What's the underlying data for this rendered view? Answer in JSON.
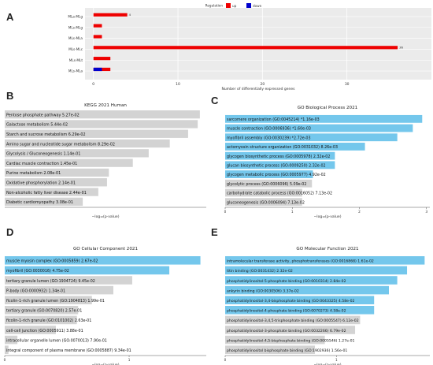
{
  "panels": {
    "A": {
      "letter": "A",
      "chart_data": {
        "type": "bar",
        "orientation": "horizontal",
        "legend_title": "Regulation",
        "legend_placement": "top-center",
        "categories": [
          "MLa-MLg",
          "MLs-MLg",
          "MLs-MLa",
          "MLs-MLc",
          "MLs-MLt",
          "MLs-MLa"
        ],
        "series": [
          {
            "name": "up",
            "color": "#ee0000",
            "values": [
              4,
              1,
              1,
              36,
              2,
              2
            ]
          },
          {
            "name": "down",
            "color": "#0000cc",
            "values": [
              0,
              0,
              0,
              0,
              0,
              1
            ]
          }
        ],
        "bar_labels": [
          "4",
          "",
          "",
          "36",
          "",
          ""
        ],
        "xlabel": "Number of differentially expressed genes",
        "xticks": [
          0,
          10,
          20,
          30
        ],
        "xlim": [
          -1,
          40
        ],
        "grid": true
      }
    },
    "B": {
      "letter": "B",
      "chart_data": {
        "type": "bar",
        "orientation": "horizontal",
        "title": "KEGG 2021 Human",
        "bar_color": "#d3d3d3",
        "xlabel": "−log₁₀(p-value)",
        "xlim": [
          0,
          1.32
        ],
        "categories": [
          "Pentose phosphate pathway  5.27e-02",
          "Galactose metabolism  5.44e-02",
          "Starch and sucrose metabolism  6.29e-02",
          "Amino sugar and nucleotide sugar metabolism  8.29e-02",
          "Glycolysis / Gluconeogenesis  1.14e-01",
          "Cardiac muscle contraction  1.45e-01",
          "Purine metabolism  2.08e-01",
          "Oxidative phosphorylation  2.14e-01",
          "Non-alcoholic fatty liver disease  2.44e-01",
          "Diabetic cardiomyopathy  3.08e-01"
        ],
        "values": [
          1.278,
          1.264,
          1.201,
          1.081,
          0.943,
          0.839,
          0.682,
          0.67,
          0.613,
          0.511
        ]
      }
    },
    "C": {
      "letter": "C",
      "chart_data": {
        "type": "bar",
        "orientation": "horizontal",
        "title": "GO Biological Process 2021",
        "xlabel": "−log₁₀(p-value)",
        "xticks": [
          0,
          1,
          2,
          3
        ],
        "xlim": [
          0,
          3.05
        ],
        "categories": [
          "sarcomere organization (GO:0045214)  *1.16e-03",
          "muscle contraction (GO:0006936)  *1.60e-03",
          "myofibril assembly (GO:0030239)  *2.72e-03",
          "actomyosin structure organization (GO:0031032)  8.26e-03",
          "glycogen biosynthetic process (GO:0005978)  2.32e-02",
          "glucan biosynthetic process (GO:0009250)  2.32e-02",
          "glycogen metabolic process (GO:0005977)  4.92e-02",
          "glycolytic process (GO:0006096)  5.09e-02",
          "carbohydrate catabolic process (GO:0016052)  7.13e-02",
          "gluconeogenesis (GO:0006094)  7.13e-02"
        ],
        "values": [
          2.936,
          2.796,
          2.565,
          2.083,
          1.635,
          1.635,
          1.308,
          1.293,
          1.147,
          1.147
        ],
        "significant": [
          true,
          true,
          true,
          true,
          true,
          true,
          true,
          false,
          false,
          false
        ]
      }
    },
    "D": {
      "letter": "D",
      "chart_data": {
        "type": "bar",
        "orientation": "horizontal",
        "title": "GO Cellular Component 2021",
        "xlabel": "−log₁₀(p-value)",
        "xticks": [
          0,
          1
        ],
        "xlim": [
          0,
          1.62
        ],
        "categories": [
          "muscle myosin complex (GO:0005859)  2.67e-02",
          "myofibril (GO:0030016)  4.75e-02",
          "tertiary granule lumen (GO:1904724)  9.45e-02",
          "P-body (GO:0000932)  1.34e-01",
          "ficolin-1-rich granule lumen (GO:1904813)  1.99e-01",
          "tertiary granule (GO:0070820)  2.57e-01",
          "ficolin-1-rich granule (GO:0101002)  2.63e-01",
          "cell-cell junction (GO:0005911)  3.88e-01",
          "intracellular organelle lumen (GO:0070013)  7.90e-01",
          "integral component of plasma membrane (GO:0005887)  9.34e-01"
        ],
        "values": [
          1.573,
          1.323,
          1.025,
          0.873,
          0.701,
          0.59,
          0.58,
          0.411,
          0.102,
          0.03
        ],
        "significant": [
          true,
          true,
          false,
          false,
          false,
          false,
          false,
          false,
          false,
          false
        ]
      }
    },
    "E": {
      "letter": "E",
      "chart_data": {
        "type": "bar",
        "orientation": "horizontal",
        "title": "GO Molecular Function 2021",
        "xlabel": "−log₁₀(p-value)",
        "xticks": [
          0,
          1
        ],
        "xlim": [
          0,
          1.84
        ],
        "categories": [
          "intramolecular transferase activity, phosphotransferases (GO:0016868)  1.61e-02",
          "titin binding (GO:0031432)  2.32e-02",
          "phosphatidylinositol-5-phosphate binding (GO:0010314)  2.84e-02",
          "ankyrin binding (GO:0030506)  3.37e-02",
          "phosphatidylinositol-3,4-bisphosphate binding (GO:0043325)  4.58e-02",
          "phosphatidylinositol-4-phosphate binding (GO:0070273)  4.58e-02",
          "phosphatidylinositol-3,4,5-trisphosphate binding (GO:0005547)  6.12e-02",
          "phosphatidylinositol-3-phosphate binding (GO:0032266)  6.79e-02",
          "phosphatidylinositol-4,5-bisphosphate binding (GO:0005546)  1.27e-01",
          "phosphatidylinositol bisphosphate binding (GO:1902936)  1.56e-01"
        ],
        "values": [
          1.793,
          1.635,
          1.547,
          1.472,
          1.339,
          1.339,
          1.213,
          1.168,
          0.896,
          0.807
        ],
        "significant": [
          true,
          true,
          true,
          true,
          true,
          true,
          false,
          false,
          false,
          false
        ]
      }
    }
  },
  "colors": {
    "significant": "#74c7ec",
    "nonsignificant": "#d3d3d3",
    "up": "#ee0000",
    "down": "#0000cc",
    "axis": "#555555",
    "grid": "#ffffff",
    "panel_a_background": "#ebebeb"
  }
}
